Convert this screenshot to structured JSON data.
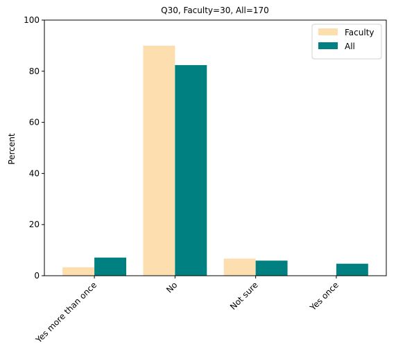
{
  "chart_data": {
    "type": "bar",
    "title": "Q30, Faculty=30, All=170",
    "xlabel": "",
    "ylabel": "Percent",
    "ylim": [
      0,
      100
    ],
    "yticks": [
      0,
      20,
      40,
      60,
      80,
      100
    ],
    "categories": [
      "Yes more than once",
      "No",
      "Not sure",
      "Yes once"
    ],
    "series": [
      {
        "name": "Faculty",
        "color": "#fddeaf",
        "values": [
          3.3,
          90.0,
          6.7,
          0.0
        ]
      },
      {
        "name": "All",
        "color": "#008080",
        "values": [
          7.1,
          82.4,
          5.9,
          4.7
        ]
      }
    ],
    "grid": false,
    "legend_position": "top-right"
  }
}
